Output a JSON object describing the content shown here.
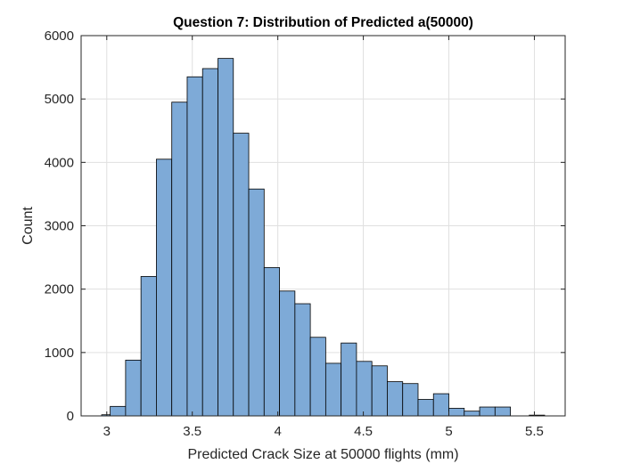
{
  "chart_data": {
    "type": "histogram",
    "title": "Question 7: Distribution of Predicted a(50000)",
    "xlabel": "Predicted Crack Size at 50000 flights (mm)",
    "ylabel": "Count",
    "xlim": [
      2.85,
      5.68
    ],
    "ylim": [
      0,
      6000
    ],
    "x_ticks": [
      3,
      3.5,
      4,
      4.5,
      5,
      5.5
    ],
    "x_tick_labels": [
      "3",
      "3.5",
      "4",
      "4.5",
      "5",
      "5.5"
    ],
    "y_ticks": [
      0,
      1000,
      2000,
      3000,
      4000,
      5000,
      6000
    ],
    "y_tick_labels": [
      "0",
      "1000",
      "2000",
      "3000",
      "4000",
      "5000",
      "6000"
    ],
    "grid": true,
    "colors": {
      "bar_fill": "#7eaad7",
      "bar_edge": "#000000",
      "grid": "#e0e0e0",
      "axes": "#262626"
    },
    "bins": [
      {
        "x_start": 2.97,
        "x_end": 3.02,
        "count": 18
      },
      {
        "x_start": 3.02,
        "x_end": 3.11,
        "count": 150
      },
      {
        "x_start": 3.11,
        "x_end": 3.2,
        "count": 880
      },
      {
        "x_start": 3.2,
        "x_end": 3.29,
        "count": 2200
      },
      {
        "x_start": 3.29,
        "x_end": 3.38,
        "count": 4050
      },
      {
        "x_start": 3.38,
        "x_end": 3.47,
        "count": 4950
      },
      {
        "x_start": 3.47,
        "x_end": 3.56,
        "count": 5350
      },
      {
        "x_start": 3.56,
        "x_end": 3.65,
        "count": 5480
      },
      {
        "x_start": 3.65,
        "x_end": 3.74,
        "count": 5640
      },
      {
        "x_start": 3.74,
        "x_end": 3.83,
        "count": 4460
      },
      {
        "x_start": 3.83,
        "x_end": 3.92,
        "count": 3580
      },
      {
        "x_start": 3.92,
        "x_end": 4.01,
        "count": 2340
      },
      {
        "x_start": 4.01,
        "x_end": 4.1,
        "count": 1970
      },
      {
        "x_start": 4.1,
        "x_end": 4.19,
        "count": 1770
      },
      {
        "x_start": 4.19,
        "x_end": 4.28,
        "count": 1240
      },
      {
        "x_start": 4.28,
        "x_end": 4.37,
        "count": 830
      },
      {
        "x_start": 4.37,
        "x_end": 4.46,
        "count": 1150
      },
      {
        "x_start": 4.46,
        "x_end": 4.55,
        "count": 860
      },
      {
        "x_start": 4.55,
        "x_end": 4.64,
        "count": 790
      },
      {
        "x_start": 4.64,
        "x_end": 4.73,
        "count": 540
      },
      {
        "x_start": 4.73,
        "x_end": 4.82,
        "count": 510
      },
      {
        "x_start": 4.82,
        "x_end": 4.91,
        "count": 260
      },
      {
        "x_start": 4.91,
        "x_end": 5.0,
        "count": 350
      },
      {
        "x_start": 5.0,
        "x_end": 5.09,
        "count": 120
      },
      {
        "x_start": 5.09,
        "x_end": 5.18,
        "count": 75
      },
      {
        "x_start": 5.18,
        "x_end": 5.27,
        "count": 140
      },
      {
        "x_start": 5.27,
        "x_end": 5.36,
        "count": 140
      },
      {
        "x_start": 5.47,
        "x_end": 5.56,
        "count": 12
      }
    ]
  }
}
